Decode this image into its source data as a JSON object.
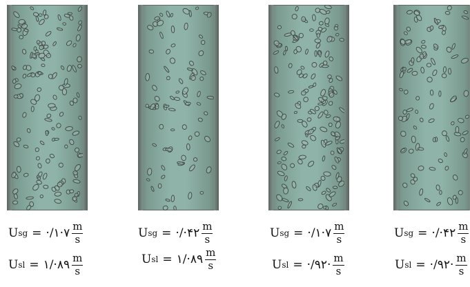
{
  "panels": [
    {
      "ugas_value": "·/۱·۷",
      "uliq_value": "۱/·۸۹"
    },
    {
      "ugas_value": "·/·۴۲",
      "uliq_value": "۱/·۸۹"
    },
    {
      "ugas_value": "·/۱·۷",
      "uliq_value": "·/۹۲·"
    },
    {
      "ugas_value": "·/·۴۲",
      "uliq_value": "·/۹۲·"
    }
  ],
  "labels": {
    "gas_symbol": "U",
    "gas_subscript": "sg",
    "liquid_symbol": "U",
    "liquid_subscript": "sl",
    "equals": "=",
    "unit_numerator": "m",
    "unit_denominator": "s"
  },
  "colors": {
    "water": "#8fb3a8",
    "bubble_edge": "#3b4641",
    "bubble_fill": "#9fb7ae"
  }
}
